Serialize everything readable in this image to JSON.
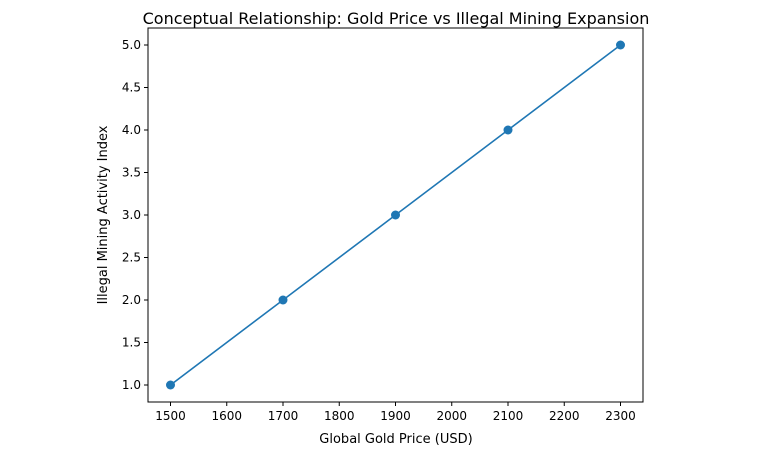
{
  "chart_data": {
    "type": "line",
    "title": "Conceptual Relationship: Gold Price vs Illegal Mining Expansion",
    "xlabel": "Global Gold Price (USD)",
    "ylabel": "Illegal Mining Activity Index",
    "x": [
      1500,
      1700,
      1900,
      2100,
      2300
    ],
    "y": [
      1,
      2,
      3,
      4,
      5
    ],
    "xlim": [
      1460,
      2340
    ],
    "ylim": [
      0.8,
      5.2
    ],
    "xticks": [
      1500,
      1600,
      1700,
      1800,
      1900,
      2000,
      2100,
      2200,
      2300
    ],
    "yticks": [
      "1.0",
      "1.5",
      "2.0",
      "2.5",
      "3.0",
      "3.5",
      "4.0",
      "4.5",
      "5.0"
    ],
    "marker": "circle",
    "color": "#1f77b4",
    "grid": false
  }
}
